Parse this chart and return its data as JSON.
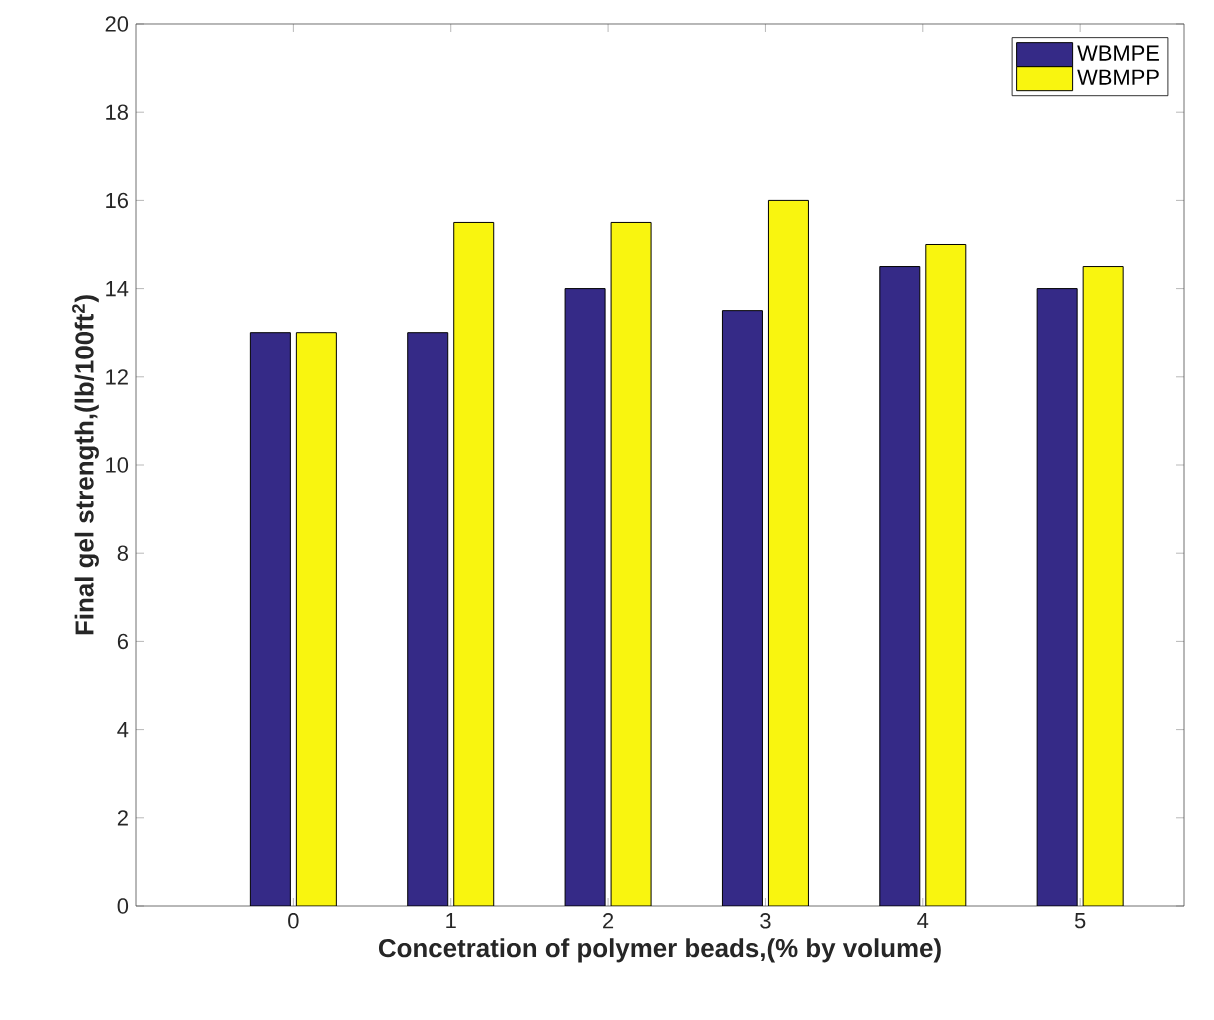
{
  "chart_data": {
    "type": "bar",
    "xlabel": "Concetration of polymer beads,(% by volume)",
    "ylabel": "Final gel strength,(lb/100ft$^{2}$)",
    "categories": [
      "0",
      "1",
      "2",
      "3",
      "4",
      "5"
    ],
    "series": [
      {
        "name": "WBMPE",
        "color": "#352a87",
        "values": [
          13,
          13,
          14,
          13.5,
          14.5,
          14
        ]
      },
      {
        "name": "WBMPP",
        "color": "#f9f50f",
        "values": [
          13,
          15.5,
          15.5,
          16,
          15,
          14.5
        ]
      }
    ],
    "ylim": [
      0,
      20
    ],
    "yticks": [
      0,
      2,
      4,
      6,
      8,
      10,
      12,
      14,
      16,
      18,
      20
    ],
    "grid": false,
    "legend": "top right"
  }
}
